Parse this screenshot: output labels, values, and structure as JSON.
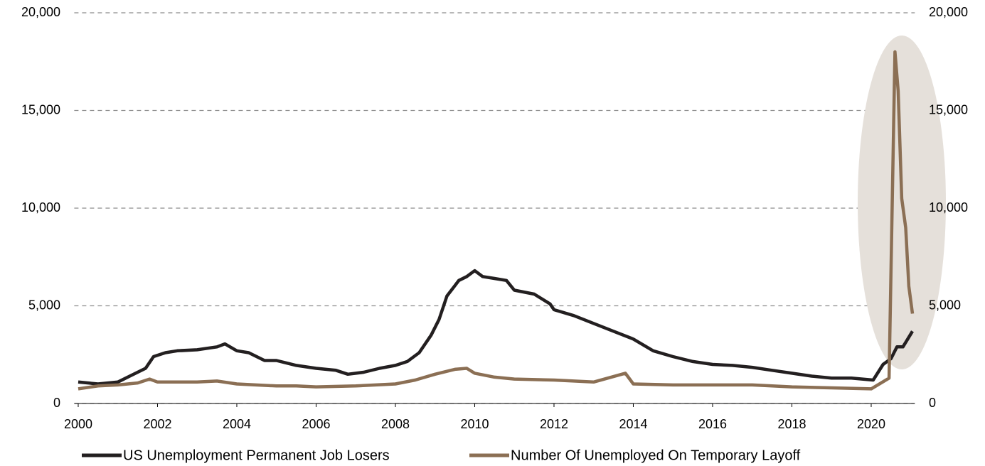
{
  "chart_data": {
    "type": "line",
    "xlim": [
      1999.9,
      2021.1
    ],
    "xticks": [
      2000,
      2002,
      2004,
      2006,
      2008,
      2010,
      2012,
      2014,
      2016,
      2018,
      2020
    ],
    "ylim": [
      0,
      20000
    ],
    "yticks": [
      0,
      {
        "value": 5000,
        "label": "5,000"
      },
      {
        "value": 10000,
        "label": "10,000"
      },
      {
        "value": 15000,
        "label": "15,000"
      },
      {
        "value": 20000,
        "label": "20,000"
      }
    ],
    "y2lim": [
      0,
      20000
    ],
    "y2ticks": [
      0,
      {
        "value": 5000,
        "label": "5,000"
      },
      {
        "value": 10000,
        "label": "10,000"
      },
      {
        "value": 15000,
        "label": "15,000"
      },
      {
        "value": 20000,
        "label": "20,000"
      }
    ],
    "grid": true,
    "legend": "bottom",
    "series": [
      {
        "name": "US Unemployment Permanent Job Losers",
        "color": "#231f20",
        "x": [
          2000,
          2000.5,
          2001,
          2001.3,
          2001.7,
          2001.9,
          2002.2,
          2002.5,
          2003,
          2003.5,
          2003.7,
          2004,
          2004.3,
          2004.7,
          2005,
          2005.5,
          2006,
          2006.5,
          2006.8,
          2007.2,
          2007.6,
          2008,
          2008.3,
          2008.6,
          2008.9,
          2009.1,
          2009.3,
          2009.6,
          2009.8,
          2010,
          2010.2,
          2010.5,
          2010.8,
          2011,
          2011.5,
          2011.9,
          2012,
          2012.5,
          2013,
          2013.5,
          2014,
          2014.5,
          2015,
          2015.5,
          2016,
          2016.5,
          2017,
          2017.5,
          2018,
          2018.5,
          2019,
          2019.5,
          2020.05,
          2020.3,
          2020.5,
          2020.65,
          2020.8,
          2021.04
        ],
        "values": [
          1100,
          1000,
          1100,
          1400,
          1800,
          2400,
          2600,
          2700,
          2750,
          2900,
          3050,
          2700,
          2600,
          2200,
          2200,
          1950,
          1800,
          1700,
          1500,
          1600,
          1800,
          1950,
          2150,
          2600,
          3500,
          4300,
          5500,
          6300,
          6500,
          6800,
          6500,
          6400,
          6300,
          5800,
          5600,
          5100,
          4800,
          4500,
          4100,
          3700,
          3300,
          2700,
          2400,
          2150,
          2000,
          1950,
          1850,
          1700,
          1550,
          1400,
          1300,
          1300,
          1200,
          2000,
          2300,
          2900,
          2900,
          3700
        ]
      },
      {
        "name": "Number Of Unemployed On Temporary Layoff",
        "color": "#8b6f54",
        "x": [
          2000,
          2000.5,
          2001,
          2001.5,
          2001.8,
          2002,
          2003,
          2003.5,
          2004,
          2005,
          2005.5,
          2006,
          2007,
          2008,
          2008.5,
          2009,
          2009.5,
          2009.8,
          2010,
          2010.5,
          2011,
          2012,
          2013,
          2013.8,
          2014,
          2015,
          2016,
          2017,
          2018,
          2019,
          2020,
          2020.45,
          2020.6,
          2020.68,
          2020.77,
          2020.87,
          2020.95,
          2021.04
        ],
        "values": [
          750,
          900,
          950,
          1050,
          1250,
          1100,
          1100,
          1150,
          1000,
          900,
          900,
          850,
          900,
          1000,
          1200,
          1500,
          1750,
          1800,
          1550,
          1350,
          1250,
          1200,
          1100,
          1550,
          1000,
          950,
          950,
          950,
          850,
          800,
          750,
          1300,
          18000,
          16000,
          10500,
          9000,
          6000,
          4600
        ]
      }
    ]
  }
}
